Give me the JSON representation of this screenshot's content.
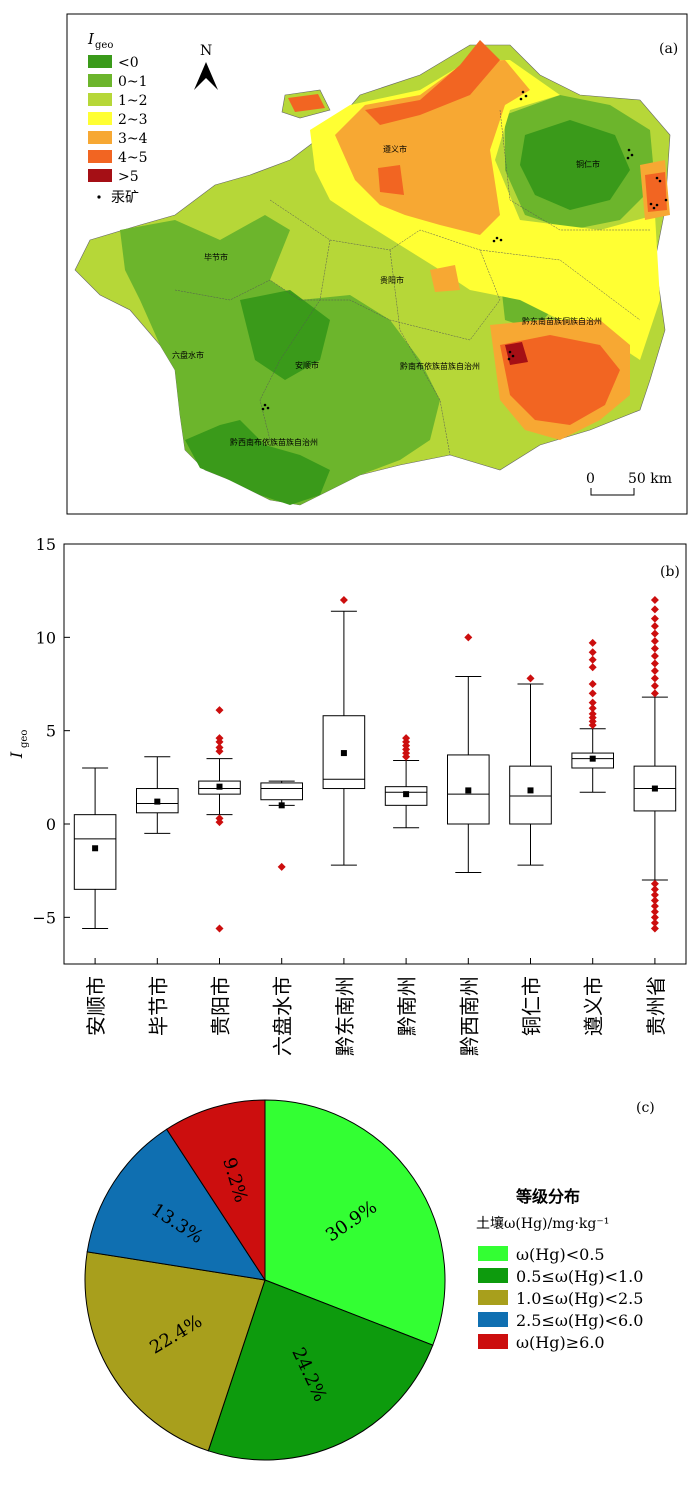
{
  "panel_a": {
    "label": "(a)",
    "legend_title": "I",
    "legend_title_sub": "geo",
    "legend": [
      {
        "label": "<0",
        "color": "#3a9a1a"
      },
      {
        "label": "0~1",
        "color": "#6cb52c"
      },
      {
        "label": "1~2",
        "color": "#b6d738"
      },
      {
        "label": "2~3",
        "color": "#ffff33"
      },
      {
        "label": "3~4",
        "color": "#f7a833"
      },
      {
        "label": "4~5",
        "color": "#f26522"
      },
      {
        "label": ">5",
        "color": "#a50f15"
      }
    ],
    "mine_label": "汞矿",
    "north_label": "N",
    "scale_zero": "0",
    "scale_end": "50 km",
    "places": [
      "遵义市",
      "铜仁市",
      "毕节市",
      "贵阳市",
      "黔东南苗族侗族自治州",
      "六盘水市",
      "安顺市",
      "黔南布依族苗族自治州",
      "黔西南布依族苗族自治州"
    ]
  },
  "chart_data": [
    {
      "type": "box",
      "label": "(b)",
      "ylabel": "I",
      "ylabel_sub": "geo",
      "ylim": [
        -7.5,
        15
      ],
      "yticks": [
        -5,
        0,
        5,
        10,
        15
      ],
      "categories": [
        "安顺市",
        "毕节市",
        "贵阳市",
        "六盘水市",
        "黔东南州",
        "黔南州",
        "黔西南州",
        "铜仁市",
        "遵义市",
        "贵州省"
      ],
      "boxes": [
        {
          "whisker_low": -5.6,
          "q1": -3.5,
          "median": -0.8,
          "q3": 0.5,
          "whisker_high": 3.0,
          "mean": -1.3,
          "outliers": []
        },
        {
          "whisker_low": -0.5,
          "q1": 0.6,
          "median": 1.1,
          "q3": 1.9,
          "whisker_high": 3.6,
          "mean": 1.2,
          "outliers": []
        },
        {
          "whisker_low": 0.5,
          "q1": 1.6,
          "median": 1.9,
          "q3": 2.3,
          "whisker_high": 3.5,
          "mean": 2.0,
          "outliers": [
            6.1,
            4.6,
            4.4,
            4.1,
            3.9,
            0.3,
            0.1,
            -5.6
          ]
        },
        {
          "whisker_low": 1.0,
          "q1": 1.3,
          "median": 1.9,
          "q3": 2.2,
          "whisker_high": 2.3,
          "mean": 1.0,
          "outliers": [
            -2.3
          ]
        },
        {
          "whisker_low": -2.2,
          "q1": 1.9,
          "median": 2.4,
          "q3": 5.8,
          "whisker_high": 11.4,
          "mean": 3.8,
          "outliers": [
            12.0
          ]
        },
        {
          "whisker_low": -0.2,
          "q1": 1.0,
          "median": 1.7,
          "q3": 2.0,
          "whisker_high": 3.4,
          "mean": 1.6,
          "outliers": [
            3.6,
            3.8,
            4.0,
            4.2,
            4.4,
            4.6
          ]
        },
        {
          "whisker_low": -2.6,
          "q1": 0.0,
          "median": 1.6,
          "q3": 3.7,
          "whisker_high": 7.9,
          "mean": 1.8,
          "outliers": [
            10.0
          ]
        },
        {
          "whisker_low": -2.2,
          "q1": 0.0,
          "median": 1.5,
          "q3": 3.1,
          "whisker_high": 7.5,
          "mean": 1.8,
          "outliers": [
            7.8
          ]
        },
        {
          "whisker_low": 1.7,
          "q1": 3.0,
          "median": 3.5,
          "q3": 3.8,
          "whisker_high": 5.1,
          "mean": 3.5,
          "outliers": [
            5.3,
            5.5,
            5.7,
            5.9,
            6.2,
            6.5,
            7.0,
            7.5,
            8.4,
            8.8,
            9.2,
            9.7
          ]
        },
        {
          "whisker_low": -3.0,
          "q1": 0.7,
          "median": 1.9,
          "q3": 3.1,
          "whisker_high": 6.8,
          "mean": 1.9,
          "outliers": [
            7.0,
            7.4,
            7.8,
            8.2,
            8.6,
            9.0,
            9.4,
            9.8,
            10.2,
            10.6,
            11.0,
            11.5,
            12.0,
            -3.2,
            -3.5,
            -3.8,
            -4.1,
            -4.4,
            -4.7,
            -5.0,
            -5.3,
            -5.6
          ]
        }
      ]
    },
    {
      "type": "pie",
      "label": "(c)",
      "legend_title": "等级分布",
      "legend_subtitle": "土壤ω(Hg)/mg·kg⁻¹",
      "slices": [
        {
          "label": "ω(Hg)<0.5",
          "value": 30.9,
          "text": "30.9%",
          "color": "#33ff33"
        },
        {
          "label": "0.5≤ω(Hg)<1.0",
          "value": 24.2,
          "text": "24.2%",
          "color": "#0d9b0d"
        },
        {
          "label": "1.0≤ω(Hg)<2.5",
          "value": 22.4,
          "text": "22.4%",
          "color": "#a89f1c"
        },
        {
          "label": "2.5≤ω(Hg)<6.0",
          "value": 13.3,
          "text": "13.3%",
          "color": "#0f6fb1"
        },
        {
          "label": "ω(Hg)≥6.0",
          "value": 9.2,
          "text": "9.2%",
          "color": "#cc0e0e"
        }
      ]
    }
  ]
}
